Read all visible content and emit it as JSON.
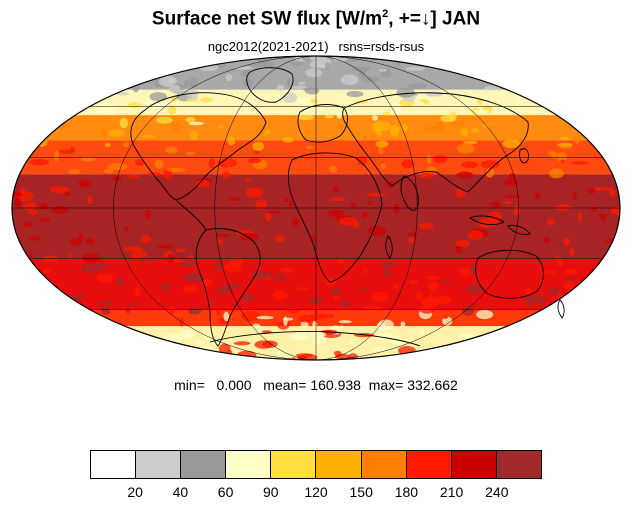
{
  "figure": {
    "title_main": "Surface net SW flux [W/m",
    "title_sup": "2",
    "title_tail": ", +=↓]  JAN",
    "subtitle_left": "ngc2012(2021-2021)",
    "subtitle_right": "rsns=rsds-rsus",
    "stats": "min=   0.000   mean= 160.938  max= 332.662"
  },
  "map": {
    "projection": "Mollweide (global)",
    "month": "JAN",
    "ocean_fill": "none (continent outlines only)",
    "bands": [
      {
        "lat_from": 90,
        "lat_to": 70,
        "level": "20-60",
        "color": "#a8a8a8"
      },
      {
        "lat_from": 70,
        "lat_to": 55,
        "level": "60-120",
        "color": "#fff6b8"
      },
      {
        "lat_from": 55,
        "lat_to": 40,
        "level": "150-180",
        "color": "#ff8c10"
      },
      {
        "lat_from": 40,
        "lat_to": 20,
        "level": "180-210",
        "color": "#ff4a10"
      },
      {
        "lat_from": 20,
        "lat_to": -30,
        "level": ">240",
        "color": "#a82424"
      },
      {
        "lat_from": -30,
        "lat_to": -60,
        "level": "210-240",
        "color": "#e80e0e"
      },
      {
        "lat_from": -60,
        "lat_to": -70,
        "level": "180-210",
        "color": "#ff3a0a"
      },
      {
        "lat_from": -70,
        "lat_to": -90,
        "level": "60-120",
        "color": "#fff2a8"
      }
    ]
  },
  "colorbar": {
    "colors": [
      "#ffffff",
      "#cccccc",
      "#999999",
      "#ffffc8",
      "#ffe040",
      "#ffb000",
      "#ff8000",
      "#ff1a00",
      "#cc0000",
      "#a02a2a"
    ],
    "labels": [
      "20",
      "40",
      "60",
      "90",
      "120",
      "150",
      "180",
      "210",
      "240"
    ]
  }
}
